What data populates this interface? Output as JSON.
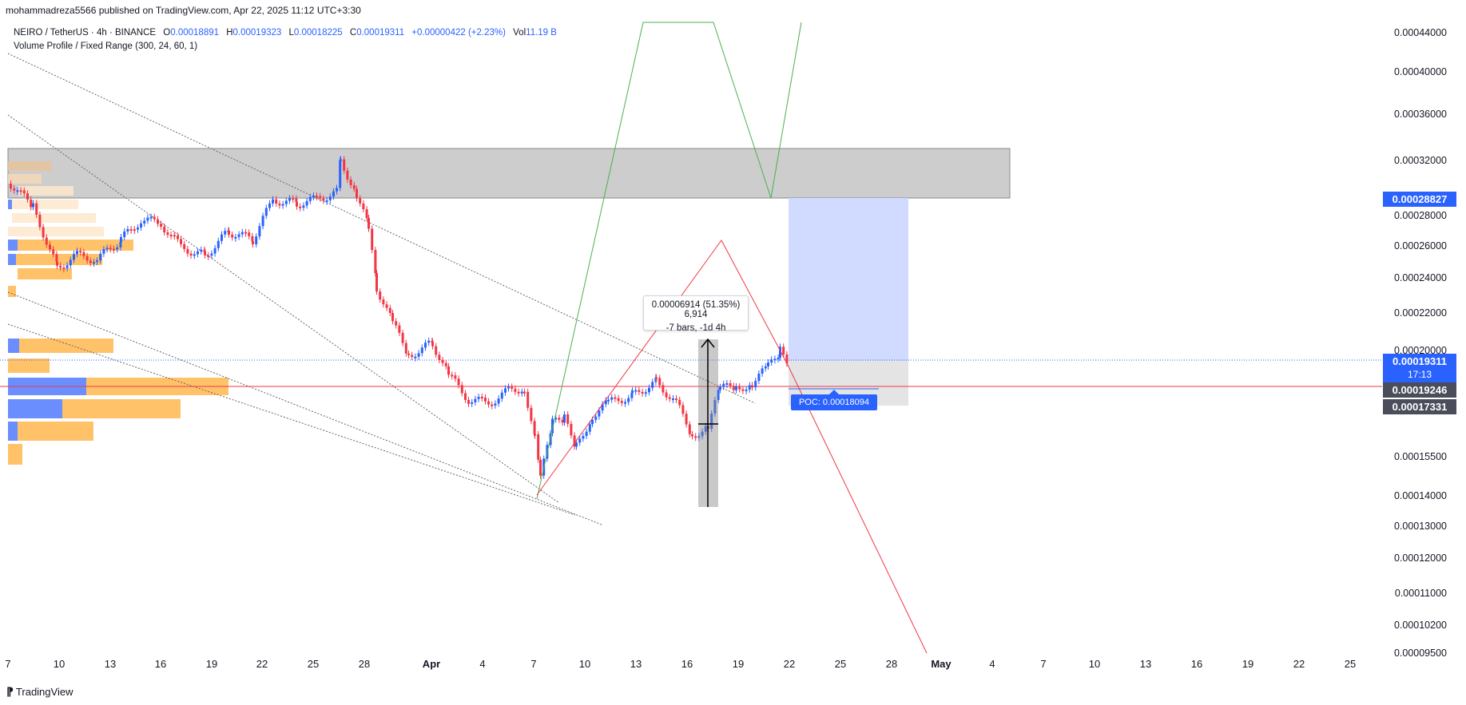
{
  "header": {
    "credit": "mohammadreza5566 published on TradingView.com, Apr 22, 2025 11:12 UTC+3:30"
  },
  "legend": {
    "symbol": "NEIRO / TetherUS · 4h · BINANCE",
    "open_key": "O",
    "open": "0.00018891",
    "high_key": "H",
    "high": "0.00019323",
    "low_key": "L",
    "low": "0.00018225",
    "close_key": "C",
    "close": "0.00019311",
    "change": "+0.00000422 (+2.23%)",
    "vol_key": "Vol",
    "vol": "11.19 B",
    "indicator": "Volume Profile / Fixed Range (300, 24, 60, 1)"
  },
  "price_axis": {
    "labels": [
      "0.00044000",
      "0.00040000",
      "0.00036000",
      "0.00032000",
      "0.00028000",
      "0.00026000",
      "0.00024000",
      "0.00022000",
      "0.00020000",
      "0.00015500",
      "0.00014000",
      "0.00013000",
      "0.00012000",
      "0.00011000",
      "0.00010200",
      "0.00009500"
    ],
    "badge_target": "0.00028827",
    "badge_current": "0.00019311",
    "badge_countdown": "17:13",
    "badge_red_line": "0.00019246",
    "badge_stop": "0.00017331"
  },
  "time_axis": {
    "labels": [
      "7",
      "10",
      "13",
      "16",
      "19",
      "22",
      "25",
      "28",
      "Apr",
      "4",
      "7",
      "10",
      "13",
      "16",
      "19",
      "22",
      "25",
      "28",
      "May",
      "4",
      "7",
      "10",
      "13",
      "16",
      "19",
      "22",
      "25"
    ],
    "month_labels": [
      "Apr",
      "May"
    ]
  },
  "measure_tool": {
    "line1": "0.00006914 (51.35%) 6,914",
    "line2": "-7 bars, -1d 4h"
  },
  "poc": {
    "label": "POC: 0.00018094"
  },
  "footer": {
    "brand": "TradingView"
  },
  "colors": {
    "up": "#2962ff",
    "down": "#f23645",
    "green_line": "#4caf50",
    "red_line": "#f23645",
    "zone": "#c8c8c8",
    "target_zone": "#d0dbff",
    "vp_blue": "#5b82ff",
    "vp_orange": "#ffb74d"
  }
}
